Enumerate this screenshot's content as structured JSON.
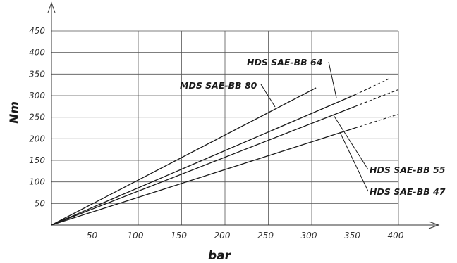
{
  "chart_data": {
    "type": "line",
    "xlabel": "bar",
    "ylabel": "Nm",
    "xlim": [
      0,
      400
    ],
    "ylim": [
      0,
      450
    ],
    "x_ticks": [
      50,
      100,
      150,
      200,
      250,
      300,
      350,
      400
    ],
    "y_ticks": [
      50,
      100,
      150,
      200,
      250,
      300,
      350,
      400,
      450
    ],
    "grid": true,
    "series": [
      {
        "name": "MDS SAE-BB 80",
        "x": [
          0,
          305
        ],
        "y": [
          0,
          318
        ],
        "extension": null
      },
      {
        "name": "HDS SAE-BB 64",
        "x": [
          0,
          350
        ],
        "y": [
          0,
          302
        ],
        "extension": {
          "x": [
            350,
            390
          ],
          "y": [
            302,
            340
          ]
        }
      },
      {
        "name": "HDS SAE-BB 55",
        "x": [
          0,
          350
        ],
        "y": [
          0,
          275
        ],
        "extension": {
          "x": [
            350,
            400
          ],
          "y": [
            275,
            314
          ]
        }
      },
      {
        "name": "HDS SAE-BB 47",
        "x": [
          0,
          350
        ],
        "y": [
          0,
          225
        ],
        "extension": {
          "x": [
            350,
            400
          ],
          "y": [
            225,
            257
          ]
        }
      }
    ]
  }
}
